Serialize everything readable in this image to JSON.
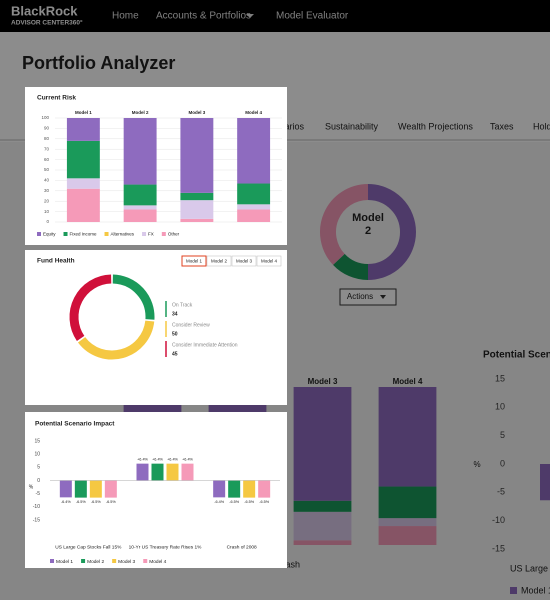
{
  "nav": {
    "brand": "BlackRock",
    "tagline": "ADVISOR CENTER360°",
    "links": [
      "Home",
      "Accounts & Portfolios",
      "Model Evaluator"
    ]
  },
  "title": "Portfolio Analyzer",
  "background": {
    "tabs": [
      "Scenarios",
      "Sustainability",
      "Wealth Projections",
      "Taxes",
      "Holdings"
    ],
    "summary_donut": {
      "type": "donut",
      "label": "Model 2",
      "values": [
        50,
        13,
        37
      ],
      "colors": [
        "#8e6bbf",
        "#1a9a5a",
        "#f59ab8"
      ]
    },
    "actions": "Actions",
    "scenario_heading": "Potential Scenario Impact",
    "scenario_footnote": "Crash"
  },
  "chart_data": [
    {
      "type": "stacked_bar",
      "title": "Current Risk",
      "categories": [
        "Model 1",
        "Model 2",
        "Model 3",
        "Model 4"
      ],
      "series": [
        {
          "name": "Equity",
          "color": "#8e6bbf",
          "values": [
            22,
            64,
            72,
            63
          ]
        },
        {
          "name": "Fixed Income",
          "color": "#1a9a5a",
          "values": [
            36,
            20,
            7,
            20
          ]
        },
        {
          "name": "Alternatives",
          "color": "#f5c842",
          "values": [
            0,
            0,
            0,
            0
          ]
        },
        {
          "name": "FX",
          "color": "#d9c9ea",
          "values": [
            10,
            4,
            18,
            5
          ]
        },
        {
          "name": "Other",
          "color": "#f59ab8",
          "values": [
            32,
            12,
            3,
            12
          ]
        }
      ],
      "ylim": [
        0,
        100
      ],
      "yticks": [
        0,
        10,
        20,
        30,
        40,
        50,
        60,
        70,
        80,
        90,
        100
      ],
      "grid": true,
      "legend": "bottom"
    },
    {
      "type": "donut",
      "title": "Fund Health",
      "tabs": [
        "Model 1",
        "Model 2",
        "Model 3",
        "Model 4"
      ],
      "selected_tab": 0,
      "categories": [
        "On Track",
        "Consider Review",
        "Consider Immediate Attention"
      ],
      "values": [
        34,
        50,
        45
      ],
      "colors": [
        "#1a9a5a",
        "#f5c842",
        "#d0103a"
      ]
    },
    {
      "type": "grouped_bar",
      "title": "Potential Scenario Impact",
      "ylabel": "%",
      "categories": [
        "US Large Cap Stocks Fall 15%",
        "10-Yr US Treasury Rate Rises 1%",
        "Crash of 2008"
      ],
      "series": [
        {
          "name": "Model 1",
          "color": "#8e6bbf",
          "values": [
            -6.4,
            6.4,
            -6.4
          ],
          "value_labels": [
            "-6.4%",
            "+6.4%",
            "-6.4%"
          ]
        },
        {
          "name": "Model 2",
          "color": "#1a9a5a",
          "values": [
            -6.5,
            6.4,
            -6.5
          ],
          "value_labels": [
            "-6.5%",
            "+6.4%",
            "-6.5%"
          ]
        },
        {
          "name": "Model 3",
          "color": "#f5c842",
          "values": [
            -6.5,
            6.4,
            -6.5
          ],
          "value_labels": [
            "-6.5%",
            "+6.4%",
            "-6.5%"
          ]
        },
        {
          "name": "Model 4",
          "color": "#f59ab8",
          "values": [
            -6.5,
            6.4,
            -6.5
          ],
          "value_labels": [
            "-6.5%",
            "+6.4%",
            "-6.5%"
          ]
        }
      ],
      "ylim": [
        -15,
        15
      ],
      "yticks": [
        -15,
        -10,
        -5,
        0,
        5,
        10,
        15
      ],
      "grid": false,
      "legend": "bottom"
    }
  ]
}
